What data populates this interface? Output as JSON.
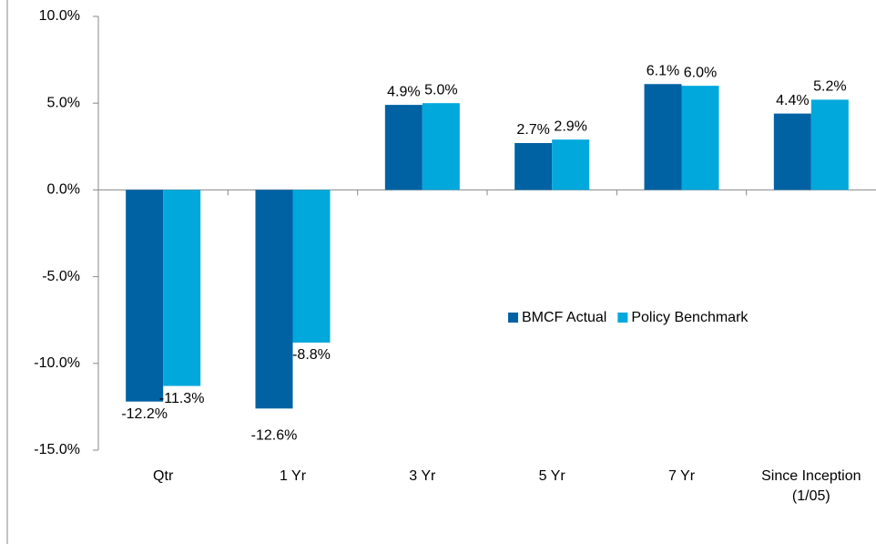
{
  "chart_data": {
    "type": "bar",
    "categories": [
      "Qtr",
      "1 Yr",
      "3 Yr",
      "5 Yr",
      "7 Yr",
      "Since Inception (1/05)"
    ],
    "series": [
      {
        "name": "BMCF Actual",
        "color": "#0062a3",
        "values": [
          -12.2,
          -12.6,
          4.9,
          2.7,
          6.1,
          4.4
        ],
        "value_labels": [
          "-12.2%",
          "-12.6%",
          "4.9%",
          "2.7%",
          "6.1%",
          "4.4%"
        ]
      },
      {
        "name": "Policy Benchmark",
        "color": "#00a8dc",
        "values": [
          -11.3,
          -8.8,
          5.0,
          2.9,
          6.0,
          5.2
        ],
        "value_labels": [
          "-11.3%",
          "-8.8%",
          "5.0%",
          "2.9%",
          "6.0%",
          "5.2%"
        ]
      }
    ],
    "ylim": [
      -15,
      10
    ],
    "yticks": [
      {
        "value": -15,
        "label": "-15.0%"
      },
      {
        "value": -10,
        "label": "-10.0%"
      },
      {
        "value": -5,
        "label": "-5.0%"
      },
      {
        "value": 0,
        "label": "0.0%"
      },
      {
        "value": 5,
        "label": "5.0%"
      },
      {
        "value": 10,
        "label": "10.0%"
      }
    ],
    "grid": false,
    "legend": "right"
  }
}
